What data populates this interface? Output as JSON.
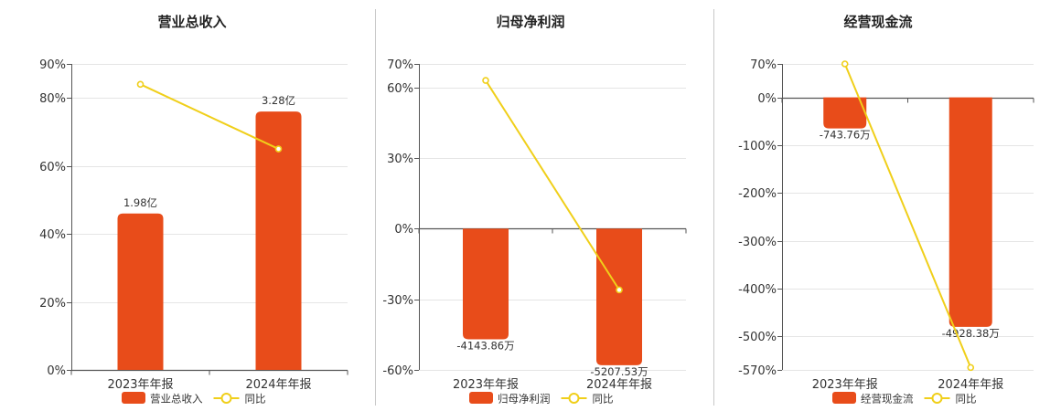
{
  "colors": {
    "bar": "#e84c1a",
    "line": "#f0cf1a",
    "axis": "#555555",
    "grid": "#e5e5e5",
    "divider": "#c8c8c8"
  },
  "chart_data": [
    {
      "type": "bar",
      "title": "营业总收入",
      "categories": [
        "2023年年报",
        "2024年年报"
      ],
      "series": [
        {
          "name": "营业总收入",
          "type": "bar",
          "values": [
            46,
            76
          ],
          "labels": [
            "1.98亿",
            "3.28亿"
          ]
        },
        {
          "name": "同比",
          "type": "line",
          "values": [
            84,
            65
          ]
        }
      ],
      "yticks": [
        0,
        20,
        40,
        60,
        80,
        90
      ],
      "ytick_labels": [
        "0%",
        "20%",
        "40%",
        "60%",
        "80%",
        "90%"
      ],
      "ylim": [
        0,
        90
      ],
      "grid": true,
      "legend_position": "bottom"
    },
    {
      "type": "bar",
      "title": "归母净利润",
      "categories": [
        "2023年年报",
        "2024年年报"
      ],
      "series": [
        {
          "name": "归母净利润",
          "type": "bar",
          "values": [
            -47,
            -58
          ],
          "labels": [
            "-4143.86万",
            "-5207.53万"
          ]
        },
        {
          "name": "同比",
          "type": "line",
          "values": [
            63,
            -26
          ]
        }
      ],
      "yticks": [
        -60,
        -30,
        0,
        30,
        60,
        70
      ],
      "ytick_labels": [
        "-60%",
        "-30%",
        "0%",
        "30%",
        "60%",
        "70%"
      ],
      "ylim": [
        -60,
        70
      ],
      "grid": true,
      "legend_position": "bottom"
    },
    {
      "type": "bar",
      "title": "经营现金流",
      "categories": [
        "2023年年报",
        "2024年年报"
      ],
      "series": [
        {
          "name": "经营现金流",
          "type": "bar",
          "values": [
            -65,
            -480
          ],
          "labels": [
            "-743.76万",
            "-4928.38万"
          ]
        },
        {
          "name": "同比",
          "type": "line",
          "values": [
            70,
            -565
          ]
        }
      ],
      "yticks": [
        -570,
        -500,
        -400,
        -300,
        -200,
        -100,
        0,
        70
      ],
      "ytick_labels": [
        "-570%",
        "-500%",
        "-400%",
        "-300%",
        "-200%",
        "-100%",
        "0%",
        "70%"
      ],
      "ylim": [
        -570,
        70
      ],
      "grid": true,
      "legend_position": "bottom"
    }
  ]
}
